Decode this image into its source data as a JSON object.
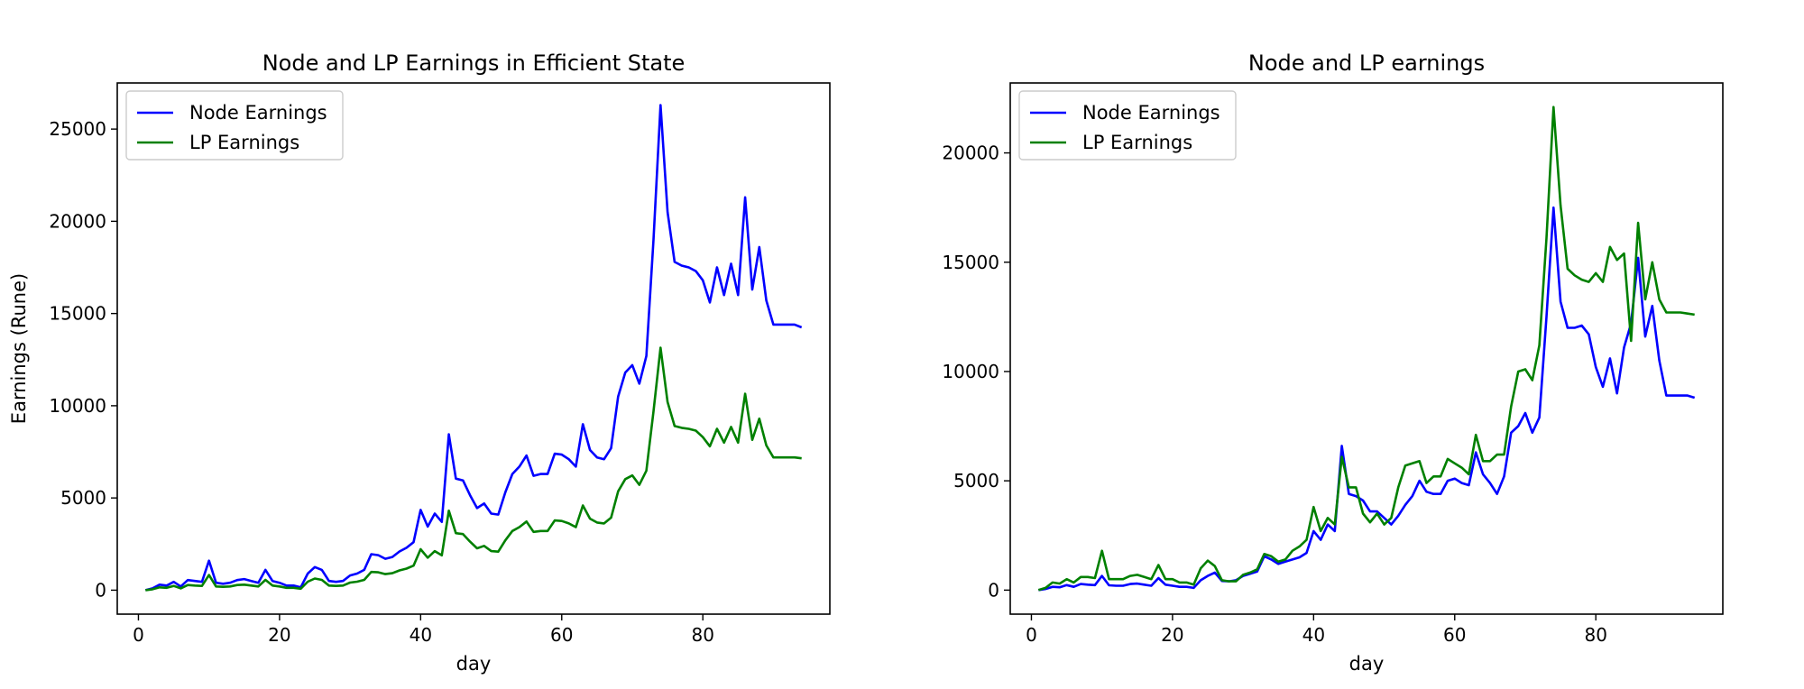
{
  "chart_data": [
    {
      "type": "line",
      "title": "Node and LP Earnings in Efficient State",
      "xlabel": "day",
      "ylabel": "Earnings (Rune)",
      "xlim": [
        -3,
        98
      ],
      "ylim": [
        -1300,
        27500
      ],
      "xticks": [
        0,
        20,
        40,
        60,
        80
      ],
      "yticks": [
        0,
        5000,
        10000,
        15000,
        20000,
        25000
      ],
      "legend": "top-left",
      "grid": false,
      "x": [
        1,
        2,
        3,
        4,
        5,
        6,
        7,
        8,
        9,
        10,
        11,
        12,
        13,
        14,
        15,
        16,
        17,
        18,
        19,
        20,
        21,
        22,
        23,
        24,
        25,
        26,
        27,
        28,
        29,
        30,
        31,
        32,
        33,
        34,
        35,
        36,
        37,
        38,
        39,
        40,
        41,
        42,
        43,
        44,
        45,
        46,
        47,
        48,
        49,
        50,
        51,
        52,
        53,
        54,
        55,
        56,
        57,
        58,
        59,
        60,
        61,
        62,
        63,
        64,
        65,
        66,
        67,
        68,
        69,
        70,
        71,
        72,
        73,
        74,
        75,
        76,
        77,
        78,
        79,
        80,
        81,
        82,
        83,
        84,
        85,
        86,
        87,
        88,
        89,
        90,
        91,
        92,
        93,
        94
      ],
      "series": [
        {
          "name": "Node Earnings",
          "color": "#0000ff",
          "values": [
            0,
            100,
            300,
            250,
            450,
            200,
            550,
            500,
            450,
            1600,
            400,
            350,
            400,
            550,
            600,
            500,
            400,
            1100,
            500,
            400,
            250,
            250,
            150,
            900,
            1250,
            1100,
            500,
            450,
            500,
            800,
            900,
            1100,
            1950,
            1900,
            1700,
            1800,
            2100,
            2300,
            2600,
            4350,
            3450,
            4150,
            3700,
            8450,
            6050,
            5950,
            5150,
            4450,
            4700,
            4150,
            4100,
            5300,
            6300,
            6700,
            7300,
            6200,
            6300,
            6300,
            7400,
            7350,
            7100,
            6700,
            9000,
            7600,
            7200,
            7100,
            7700,
            10500,
            11800,
            12200,
            11200,
            12700,
            19000,
            26300,
            20500,
            17800,
            17600,
            17500,
            17300,
            16800,
            15600,
            17500,
            16000,
            17700,
            16000,
            21300,
            16300,
            18600,
            15700,
            14400,
            14400,
            14400,
            14400,
            14250
          ]
        },
        {
          "name": "LP Earnings",
          "color": "#008000",
          "values": [
            0,
            50,
            150,
            130,
            230,
            100,
            280,
            250,
            230,
            820,
            200,
            180,
            200,
            280,
            300,
            250,
            200,
            560,
            250,
            200,
            130,
            130,
            80,
            460,
            630,
            560,
            250,
            230,
            250,
            410,
            460,
            560,
            990,
            970,
            870,
            920,
            1070,
            1170,
            1330,
            2220,
            1760,
            2120,
            1890,
            4310,
            3090,
            3040,
            2630,
            2270,
            2400,
            2120,
            2090,
            2700,
            3210,
            3420,
            3720,
            3160,
            3210,
            3210,
            3780,
            3750,
            3620,
            3420,
            4590,
            3880,
            3670,
            3620,
            3930,
            5360,
            6020,
            6220,
            5710,
            6480,
            9690,
            13150,
            10200,
            8900,
            8800,
            8750,
            8650,
            8300,
            7800,
            8750,
            8000,
            8850,
            8000,
            10650,
            8150,
            9300,
            7850,
            7200,
            7200,
            7200,
            7200,
            7150
          ]
        }
      ]
    },
    {
      "type": "line",
      "title": "Node and LP earnings",
      "xlabel": "day",
      "ylabel": "",
      "xlim": [
        -3,
        98
      ],
      "ylim": [
        -1100,
        23200
      ],
      "xticks": [
        0,
        20,
        40,
        60,
        80
      ],
      "yticks": [
        0,
        5000,
        10000,
        15000,
        20000
      ],
      "legend": "top-left",
      "grid": false,
      "x": [
        1,
        2,
        3,
        4,
        5,
        6,
        7,
        8,
        9,
        10,
        11,
        12,
        13,
        14,
        15,
        16,
        17,
        18,
        19,
        20,
        21,
        22,
        23,
        24,
        25,
        26,
        27,
        28,
        29,
        30,
        31,
        32,
        33,
        34,
        35,
        36,
        37,
        38,
        39,
        40,
        41,
        42,
        43,
        44,
        45,
        46,
        47,
        48,
        49,
        50,
        51,
        52,
        53,
        54,
        55,
        56,
        57,
        58,
        59,
        60,
        61,
        62,
        63,
        64,
        65,
        66,
        67,
        68,
        69,
        70,
        71,
        72,
        73,
        74,
        75,
        76,
        77,
        78,
        79,
        80,
        81,
        82,
        83,
        84,
        85,
        86,
        87,
        88,
        89,
        90,
        91,
        92,
        93,
        94
      ],
      "series": [
        {
          "name": "Node Earnings",
          "color": "#0000ff",
          "values": [
            0,
            50,
            150,
            130,
            230,
            150,
            280,
            250,
            230,
            650,
            220,
            200,
            200,
            280,
            300,
            250,
            200,
            550,
            250,
            200,
            150,
            150,
            100,
            450,
            650,
            800,
            420,
            400,
            450,
            650,
            750,
            850,
            1550,
            1400,
            1200,
            1300,
            1400,
            1500,
            1700,
            2700,
            2300,
            3000,
            2700,
            6600,
            4400,
            4300,
            4100,
            3600,
            3600,
            3300,
            3000,
            3400,
            3900,
            4300,
            5000,
            4500,
            4400,
            4400,
            5000,
            5100,
            4900,
            4800,
            6300,
            5300,
            4900,
            4400,
            5200,
            7200,
            7500,
            8100,
            7200,
            7900,
            12500,
            17500,
            13200,
            12000,
            12000,
            12100,
            11700,
            10200,
            9300,
            10600,
            9000,
            11100,
            12200,
            15200,
            11600,
            13000,
            10500,
            8900,
            8900,
            8900,
            8900,
            8800
          ]
        },
        {
          "name": "LP Earnings",
          "color": "#008000",
          "values": [
            0,
            100,
            350,
            300,
            500,
            350,
            600,
            600,
            550,
            1800,
            500,
            500,
            500,
            650,
            700,
            600,
            500,
            1150,
            500,
            500,
            350,
            350,
            250,
            1000,
            1350,
            1100,
            450,
            400,
            400,
            700,
            800,
            950,
            1650,
            1550,
            1300,
            1400,
            1800,
            2000,
            2300,
            3800,
            2700,
            3300,
            3000,
            6100,
            4700,
            4700,
            3500,
            3100,
            3500,
            3000,
            3300,
            4700,
            5700,
            5800,
            5900,
            4900,
            5200,
            5200,
            6000,
            5800,
            5600,
            5300,
            7100,
            5900,
            5900,
            6200,
            6200,
            8400,
            10000,
            10100,
            9600,
            11200,
            16100,
            22100,
            17600,
            14700,
            14400,
            14200,
            14100,
            14500,
            14100,
            15700,
            15100,
            15400,
            11400,
            16800,
            13300,
            15000,
            13300,
            12700,
            12700,
            12700,
            12650,
            12600
          ]
        }
      ]
    }
  ]
}
